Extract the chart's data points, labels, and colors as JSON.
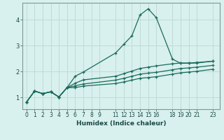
{
  "xlabel": "Humidex (Indice chaleur)",
  "background_color": "#d8f0ee",
  "grid_color": "#c0dbd8",
  "line_color": "#1a6b5a",
  "spine_color": "#7a9a96",
  "x_ticks": [
    0,
    1,
    2,
    3,
    4,
    5,
    6,
    7,
    8,
    9,
    11,
    12,
    13,
    14,
    15,
    16,
    18,
    19,
    20,
    21,
    23
  ],
  "xlim": [
    -0.5,
    23.8
  ],
  "ylim": [
    0.55,
    4.65
  ],
  "y_ticks": [
    1,
    2,
    3,
    4
  ],
  "series": [
    {
      "x": [
        0,
        1,
        2,
        3,
        4,
        5,
        6,
        7,
        11,
        12,
        13,
        14,
        15,
        16,
        18,
        19,
        20,
        21,
        23
      ],
      "y": [
        0.82,
        1.25,
        1.15,
        1.22,
        1.02,
        1.38,
        1.82,
        1.98,
        2.72,
        3.05,
        3.38,
        4.18,
        4.42,
        4.08,
        2.48,
        2.32,
        2.32,
        2.33,
        2.4
      ]
    },
    {
      "x": [
        0,
        1,
        2,
        3,
        4,
        5,
        6,
        7,
        11,
        12,
        13,
        14,
        15,
        16,
        18,
        19,
        20,
        21,
        23
      ],
      "y": [
        0.82,
        1.25,
        1.15,
        1.22,
        1.02,
        1.38,
        1.55,
        1.68,
        1.82,
        1.92,
        2.02,
        2.12,
        2.17,
        2.22,
        2.3,
        2.33,
        2.33,
        2.35,
        2.4
      ]
    },
    {
      "x": [
        0,
        1,
        2,
        3,
        4,
        5,
        6,
        7,
        11,
        12,
        13,
        14,
        15,
        16,
        18,
        19,
        20,
        21,
        23
      ],
      "y": [
        0.82,
        1.25,
        1.15,
        1.22,
        1.02,
        1.38,
        1.45,
        1.52,
        1.67,
        1.74,
        1.82,
        1.9,
        1.94,
        1.97,
        2.07,
        2.12,
        2.14,
        2.17,
        2.24
      ]
    },
    {
      "x": [
        0,
        1,
        2,
        3,
        4,
        5,
        6,
        7,
        11,
        12,
        13,
        14,
        15,
        16,
        18,
        19,
        20,
        21,
        23
      ],
      "y": [
        0.82,
        1.25,
        1.15,
        1.22,
        1.02,
        1.38,
        1.38,
        1.44,
        1.54,
        1.6,
        1.67,
        1.74,
        1.77,
        1.8,
        1.9,
        1.95,
        1.98,
        2.01,
        2.09
      ]
    }
  ]
}
